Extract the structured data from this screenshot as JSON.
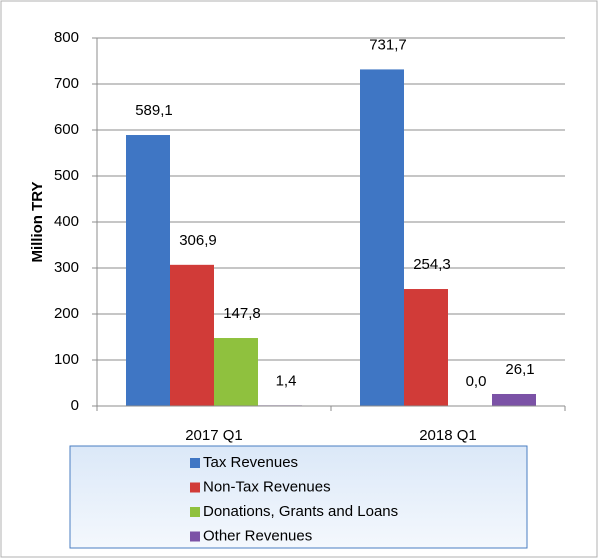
{
  "chart_data": {
    "type": "bar",
    "y_label": "Million TRY",
    "categories": [
      "2017 Q1",
      "2018 Q1"
    ],
    "series": [
      {
        "name": "Tax Revenues",
        "color": "#3f76c4",
        "values": [
          589.1,
          731.7
        ],
        "value_labels": [
          "589,1",
          "731,7"
        ]
      },
      {
        "name": "Non-Tax Revenues",
        "color": "#d13b38",
        "values": [
          306.9,
          254.3
        ],
        "value_labels": [
          "306,9",
          "254,3"
        ]
      },
      {
        "name": "Donations, Grants and Loans",
        "color": "#8fc13e",
        "values": [
          147.8,
          0.0
        ],
        "value_labels": [
          "147,8",
          "0,0"
        ]
      },
      {
        "name": "Other Revenues",
        "color": "#7b52a6",
        "values": [
          1.4,
          26.1
        ],
        "value_labels": [
          "1,4",
          "26,1"
        ]
      }
    ],
    "ylim": [
      0,
      800
    ],
    "yticks": [
      0,
      100,
      200,
      300,
      400,
      500,
      600,
      700,
      800
    ],
    "grid": true
  }
}
